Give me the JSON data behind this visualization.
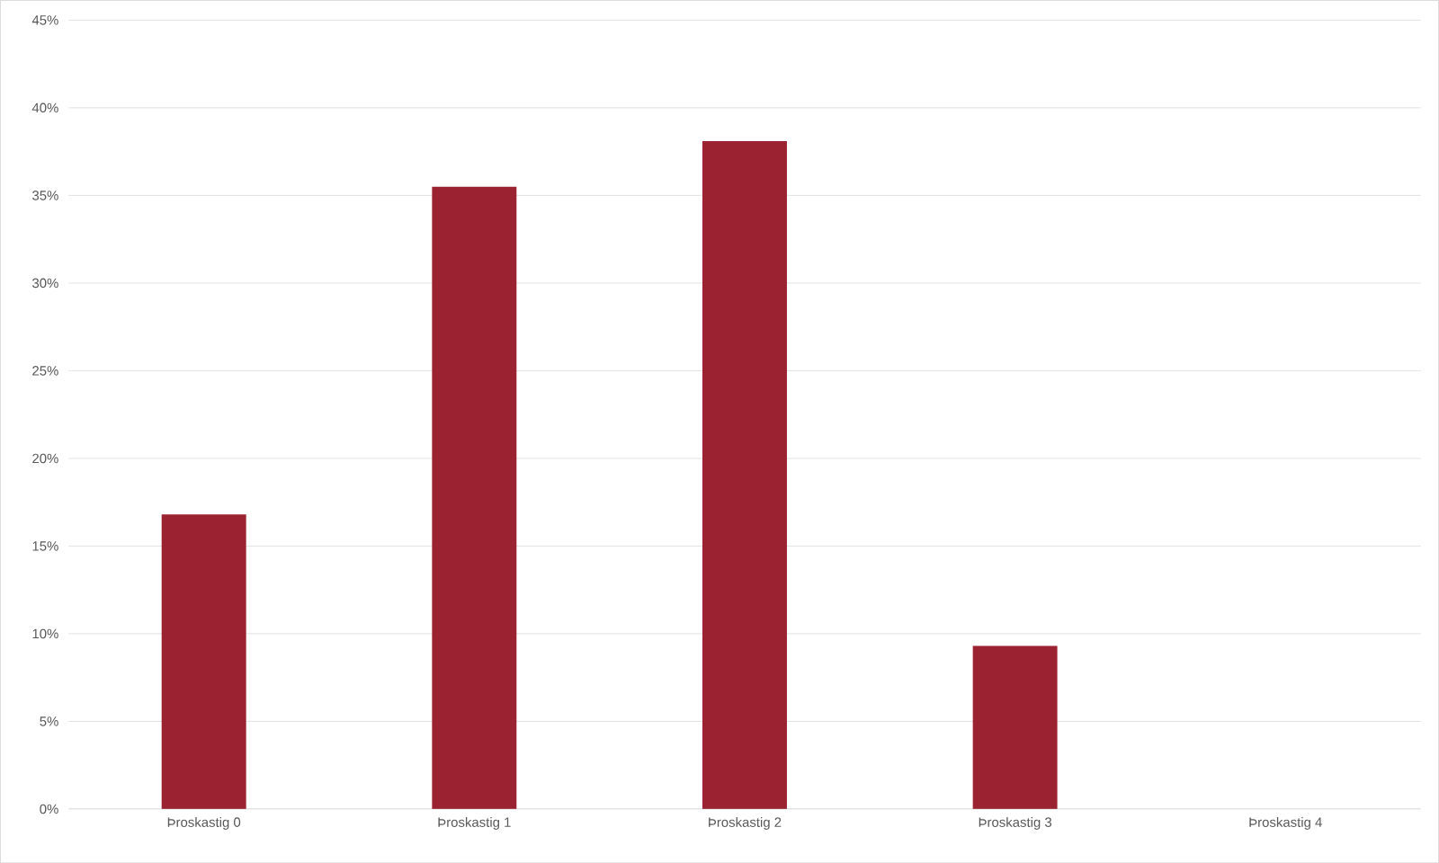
{
  "chart_data": {
    "type": "bar",
    "categories": [
      "Þroskastig 0",
      "Þroskastig 1",
      "Þroskastig 2",
      "Þroskastig 3",
      "Þroskastig 4"
    ],
    "values": [
      16.8,
      35.5,
      38.1,
      9.3,
      0
    ],
    "color": "#9b2230",
    "ylim": [
      0,
      45
    ],
    "yticks": [
      {
        "value": 0,
        "label": "0%"
      },
      {
        "value": 5,
        "label": "5%"
      },
      {
        "value": 10,
        "label": "10%"
      },
      {
        "value": 15,
        "label": "15%"
      },
      {
        "value": 20,
        "label": "20%"
      },
      {
        "value": 25,
        "label": "25%"
      },
      {
        "value": 30,
        "label": "30%"
      },
      {
        "value": 35,
        "label": "35%"
      },
      {
        "value": 40,
        "label": "40%"
      },
      {
        "value": 45,
        "label": "45%"
      }
    ],
    "grid": "y"
  }
}
